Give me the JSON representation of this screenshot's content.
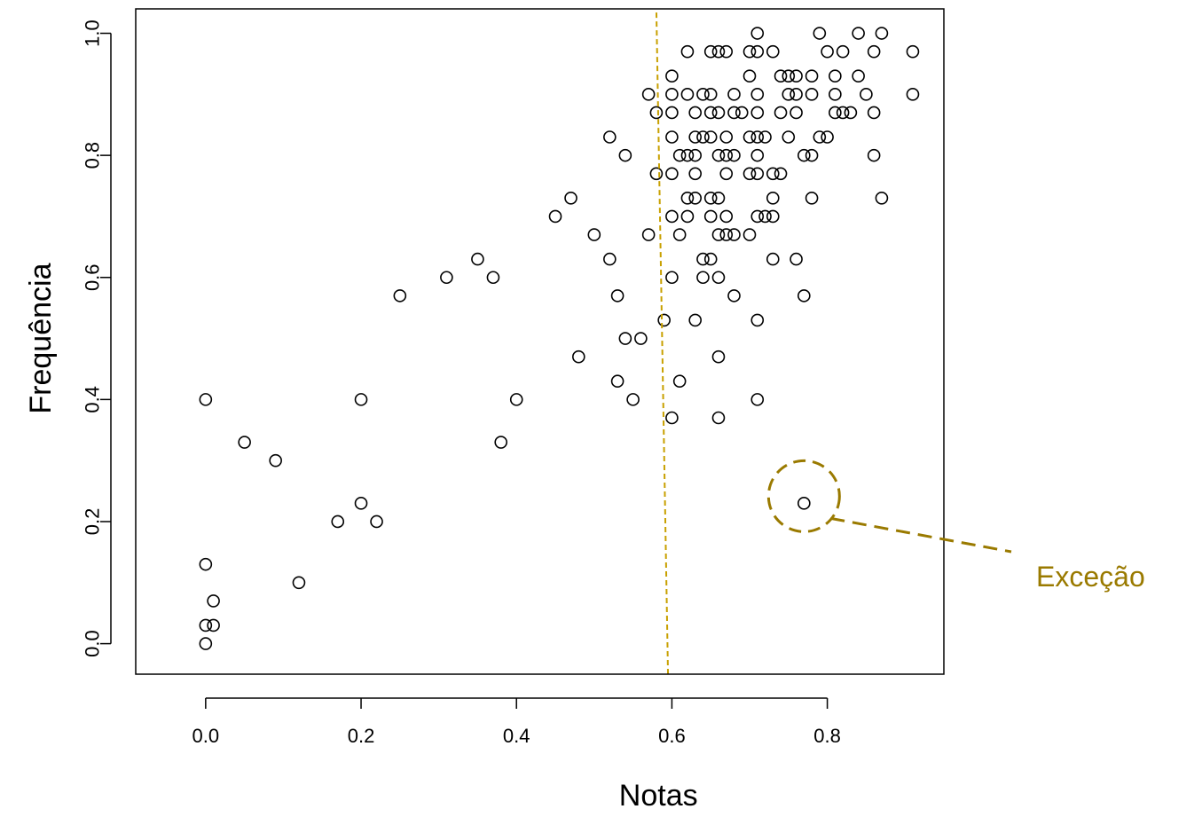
{
  "chart_data": {
    "type": "scatter",
    "title": "",
    "xlabel": "Notas",
    "ylabel": "Frequência",
    "xlim": [
      -0.09,
      0.95
    ],
    "ylim": [
      -0.05,
      1.04
    ],
    "x_ticks": [
      0.0,
      0.2,
      0.4,
      0.6,
      0.8
    ],
    "x_tick_labels": [
      "0.0",
      "0.2",
      "0.4",
      "0.6",
      "0.8"
    ],
    "y_ticks": [
      0.0,
      0.2,
      0.4,
      0.6,
      0.8,
      1.0
    ],
    "y_tick_labels": [
      "0.0",
      "0.2",
      "0.4",
      "0.6",
      "0.8",
      "1.0"
    ],
    "grid": false,
    "marker": "open-circle",
    "series": [
      {
        "points": [
          [
            0.0,
            0.0
          ],
          [
            0.0,
            0.03
          ],
          [
            0.01,
            0.03
          ],
          [
            0.01,
            0.07
          ],
          [
            0.0,
            0.13
          ],
          [
            0.0,
            0.4
          ],
          [
            0.05,
            0.33
          ],
          [
            0.09,
            0.3
          ],
          [
            0.12,
            0.1
          ],
          [
            0.17,
            0.2
          ],
          [
            0.2,
            0.23
          ],
          [
            0.22,
            0.2
          ],
          [
            0.2,
            0.4
          ],
          [
            0.25,
            0.57
          ],
          [
            0.31,
            0.6
          ],
          [
            0.35,
            0.63
          ],
          [
            0.37,
            0.6
          ],
          [
            0.38,
            0.33
          ],
          [
            0.4,
            0.4
          ],
          [
            0.45,
            0.7
          ],
          [
            0.47,
            0.73
          ],
          [
            0.48,
            0.47
          ],
          [
            0.5,
            0.67
          ],
          [
            0.52,
            0.63
          ],
          [
            0.52,
            0.83
          ],
          [
            0.53,
            0.57
          ],
          [
            0.53,
            0.43
          ],
          [
            0.54,
            0.5
          ],
          [
            0.54,
            0.8
          ],
          [
            0.55,
            0.4
          ],
          [
            0.56,
            0.5
          ],
          [
            0.57,
            0.67
          ],
          [
            0.57,
            0.9
          ],
          [
            0.58,
            0.87
          ],
          [
            0.58,
            0.77
          ],
          [
            0.59,
            0.53
          ],
          [
            0.6,
            0.6
          ],
          [
            0.6,
            0.37
          ],
          [
            0.6,
            0.7
          ],
          [
            0.6,
            0.77
          ],
          [
            0.6,
            0.83
          ],
          [
            0.6,
            0.87
          ],
          [
            0.6,
            0.9
          ],
          [
            0.6,
            0.93
          ],
          [
            0.61,
            0.43
          ],
          [
            0.61,
            0.67
          ],
          [
            0.61,
            0.8
          ],
          [
            0.62,
            0.7
          ],
          [
            0.62,
            0.73
          ],
          [
            0.62,
            0.8
          ],
          [
            0.62,
            0.9
          ],
          [
            0.62,
            0.97
          ],
          [
            0.63,
            0.53
          ],
          [
            0.63,
            0.73
          ],
          [
            0.63,
            0.77
          ],
          [
            0.63,
            0.8
          ],
          [
            0.63,
            0.83
          ],
          [
            0.63,
            0.87
          ],
          [
            0.64,
            0.6
          ],
          [
            0.64,
            0.63
          ],
          [
            0.64,
            0.83
          ],
          [
            0.64,
            0.9
          ],
          [
            0.65,
            0.63
          ],
          [
            0.65,
            0.7
          ],
          [
            0.65,
            0.73
          ],
          [
            0.65,
            0.83
          ],
          [
            0.65,
            0.87
          ],
          [
            0.65,
            0.9
          ],
          [
            0.65,
            0.97
          ],
          [
            0.66,
            0.37
          ],
          [
            0.66,
            0.47
          ],
          [
            0.66,
            0.6
          ],
          [
            0.66,
            0.67
          ],
          [
            0.66,
            0.73
          ],
          [
            0.66,
            0.8
          ],
          [
            0.66,
            0.87
          ],
          [
            0.66,
            0.97
          ],
          [
            0.67,
            0.67
          ],
          [
            0.67,
            0.7
          ],
          [
            0.67,
            0.77
          ],
          [
            0.67,
            0.8
          ],
          [
            0.67,
            0.83
          ],
          [
            0.67,
            0.97
          ],
          [
            0.68,
            0.57
          ],
          [
            0.68,
            0.67
          ],
          [
            0.68,
            0.8
          ],
          [
            0.68,
            0.87
          ],
          [
            0.68,
            0.9
          ],
          [
            0.69,
            0.87
          ],
          [
            0.7,
            0.67
          ],
          [
            0.7,
            0.77
          ],
          [
            0.7,
            0.83
          ],
          [
            0.7,
            0.93
          ],
          [
            0.7,
            0.97
          ],
          [
            0.71,
            0.4
          ],
          [
            0.71,
            0.53
          ],
          [
            0.71,
            0.7
          ],
          [
            0.71,
            0.77
          ],
          [
            0.71,
            0.8
          ],
          [
            0.71,
            0.83
          ],
          [
            0.71,
            0.87
          ],
          [
            0.71,
            0.9
          ],
          [
            0.71,
            0.97
          ],
          [
            0.71,
            1.0
          ],
          [
            0.72,
            0.7
          ],
          [
            0.72,
            0.83
          ],
          [
            0.73,
            0.63
          ],
          [
            0.73,
            0.7
          ],
          [
            0.73,
            0.73
          ],
          [
            0.73,
            0.77
          ],
          [
            0.73,
            0.97
          ],
          [
            0.74,
            0.77
          ],
          [
            0.74,
            0.87
          ],
          [
            0.74,
            0.93
          ],
          [
            0.75,
            0.83
          ],
          [
            0.75,
            0.9
          ],
          [
            0.75,
            0.93
          ],
          [
            0.76,
            0.63
          ],
          [
            0.76,
            0.87
          ],
          [
            0.76,
            0.9
          ],
          [
            0.76,
            0.93
          ],
          [
            0.77,
            0.23
          ],
          [
            0.77,
            0.57
          ],
          [
            0.77,
            0.8
          ],
          [
            0.78,
            0.73
          ],
          [
            0.78,
            0.8
          ],
          [
            0.78,
            0.9
          ],
          [
            0.78,
            0.93
          ],
          [
            0.79,
            0.83
          ],
          [
            0.79,
            1.0
          ],
          [
            0.8,
            0.83
          ],
          [
            0.8,
            0.97
          ],
          [
            0.81,
            0.87
          ],
          [
            0.81,
            0.9
          ],
          [
            0.81,
            0.93
          ],
          [
            0.82,
            0.87
          ],
          [
            0.82,
            0.97
          ],
          [
            0.83,
            0.87
          ],
          [
            0.84,
            0.93
          ],
          [
            0.84,
            1.0
          ],
          [
            0.85,
            0.9
          ],
          [
            0.86,
            0.8
          ],
          [
            0.86,
            0.87
          ],
          [
            0.86,
            0.97
          ],
          [
            0.87,
            0.73
          ],
          [
            0.87,
            1.0
          ],
          [
            0.91,
            0.9
          ],
          [
            0.91,
            0.97
          ]
        ]
      }
    ],
    "threshold_line": {
      "x_bottom": 0.595,
      "x_top": 0.58,
      "color": "#c8a000",
      "style": "dashed"
    },
    "annotations": [
      {
        "text": "Exceção",
        "point": [
          0.77,
          0.23
        ],
        "color": "#9a7a00"
      }
    ]
  }
}
